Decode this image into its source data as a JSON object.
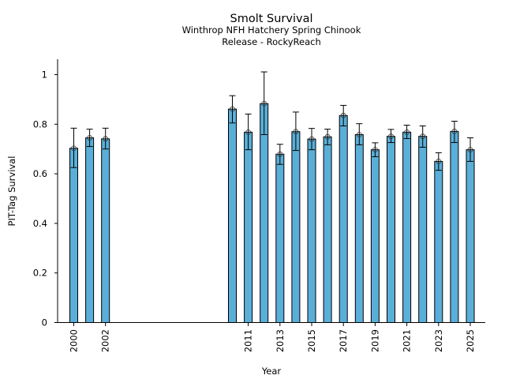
{
  "chart_data": {
    "type": "bar",
    "title": "Smolt Survival",
    "subtitle_lines": [
      "Winthrop NFH Hatchery Spring Chinook",
      "Release - RockyReach"
    ],
    "xlabel": "Year",
    "ylabel": "PIT-Tag Survival",
    "ylim": [
      0,
      1.06
    ],
    "xlim": [
      1999.0,
      2026.0
    ],
    "yticks": [
      0,
      0.2,
      0.4,
      0.6,
      0.8,
      1
    ],
    "ytick_labels": [
      "0",
      "0.2",
      "0.4",
      "0.6",
      "0.8",
      "1"
    ],
    "xticks": [
      2000,
      2002,
      2011,
      2013,
      2015,
      2017,
      2019,
      2021,
      2023,
      2025
    ],
    "xtick_labels": [
      "2000",
      "2002",
      "2011",
      "2013",
      "2015",
      "2017",
      "2019",
      "2021",
      "2023",
      "2025"
    ],
    "bar_color": "#5aafd8",
    "grid": false,
    "legend": null,
    "series": [
      {
        "name": "PIT-Tag Survival",
        "x": [
          2000,
          2001,
          2002,
          2010,
          2011,
          2012,
          2013,
          2014,
          2015,
          2016,
          2017,
          2018,
          2019,
          2020,
          2021,
          2022,
          2023,
          2024,
          2025
        ],
        "values": [
          0.703,
          0.745,
          0.741,
          0.861,
          0.768,
          0.883,
          0.679,
          0.77,
          0.74,
          0.749,
          0.835,
          0.758,
          0.697,
          0.751,
          0.768,
          0.751,
          0.65,
          0.771,
          0.697
        ],
        "err_upper": [
          0.784,
          0.78,
          0.784,
          0.915,
          0.841,
          1.011,
          0.719,
          0.849,
          0.783,
          0.78,
          0.876,
          0.802,
          0.725,
          0.779,
          0.796,
          0.793,
          0.685,
          0.812,
          0.745
        ],
        "err_lower": [
          0.625,
          0.71,
          0.7,
          0.805,
          0.697,
          0.758,
          0.638,
          0.694,
          0.697,
          0.717,
          0.793,
          0.717,
          0.669,
          0.726,
          0.742,
          0.707,
          0.614,
          0.726,
          0.65
        ]
      }
    ]
  }
}
